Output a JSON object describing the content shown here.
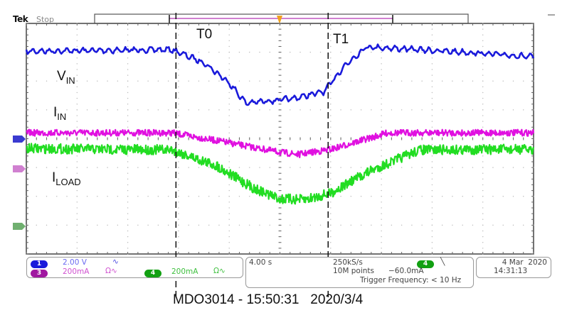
{
  "header": {
    "brand": "Tek",
    "status": "Stop"
  },
  "annotations": {
    "vin": {
      "main": "V",
      "sub": "IN"
    },
    "iin": {
      "main": "I",
      "sub": "IN"
    },
    "iload": {
      "main": "I",
      "sub": "LOAD"
    },
    "t0": "T0",
    "t1": "T1"
  },
  "channels": {
    "ch1": {
      "number": "1",
      "scale": "2.00 V",
      "color": "#1a1adb",
      "coupling_icon": "bandwidth-limit"
    },
    "ch3": {
      "number": "3",
      "scale": "200mA",
      "color": "#b018b0",
      "coupling_icon": "ohm-bandwidth-limit"
    },
    "ch4": {
      "number": "4",
      "scale": "200mA",
      "color": "#12a012",
      "coupling_icon": "ohm-bandwidth-limit"
    }
  },
  "acquisition": {
    "timebase": "4.00 s",
    "sample_rate": "250kS/s",
    "record_length": "10M points",
    "trigger_source": "4",
    "trigger_slope": "falling",
    "trigger_level": "−60.0mA",
    "trigger_frequency": "Trigger Frequency: < 10 Hz"
  },
  "datetime": {
    "date": "4 Mar  2020",
    "time": "14:31:13"
  },
  "caption": "MDO3014 - 15:50:31   2020/3/4",
  "chart_data": {
    "type": "line",
    "xlabel": "",
    "ylabel": "",
    "x_units": "s",
    "xlim": [
      -20,
      20
    ],
    "grid": true,
    "divisions": {
      "horizontal": 10,
      "vertical": 8
    },
    "cursors": [
      {
        "label": "T0",
        "x": -8.2
      },
      {
        "label": "T1",
        "x": 3.8
      }
    ],
    "series": [
      {
        "name": "VIN",
        "channel": "ch1",
        "units": "V",
        "volts_per_div": 2.0,
        "color": "#1a1adb",
        "points": [
          [
            -20,
            6.1
          ],
          [
            -8.5,
            6.2
          ],
          [
            -6,
            5.3
          ],
          [
            -4,
            3.9
          ],
          [
            -2.7,
            2.5
          ],
          [
            1,
            2.8
          ],
          [
            3.5,
            3.3
          ],
          [
            5,
            5.0
          ],
          [
            6.8,
            6.4
          ],
          [
            15,
            6.0
          ],
          [
            20,
            5.7
          ]
        ]
      },
      {
        "name": "IIN",
        "channel": "ch3",
        "units": "mA",
        "amps_per_div": 200,
        "color": "#e010e0",
        "points": [
          [
            -20,
            250
          ],
          [
            -8.5,
            250
          ],
          [
            -4,
            180
          ],
          [
            0,
            115
          ],
          [
            1.5,
            100
          ],
          [
            4,
            135
          ],
          [
            8.5,
            250
          ],
          [
            20,
            250
          ]
        ]
      },
      {
        "name": "ILOAD",
        "channel": "ch4",
        "units": "mA",
        "amps_per_div": 200,
        "color": "#22dd22",
        "points": [
          [
            -20,
            540
          ],
          [
            -8.5,
            530
          ],
          [
            -5,
            420
          ],
          [
            -2,
            260
          ],
          [
            0,
            190
          ],
          [
            2,
            185
          ],
          [
            4,
            230
          ],
          [
            7,
            380
          ],
          [
            11,
            530
          ],
          [
            20,
            535
          ]
        ]
      }
    ]
  }
}
